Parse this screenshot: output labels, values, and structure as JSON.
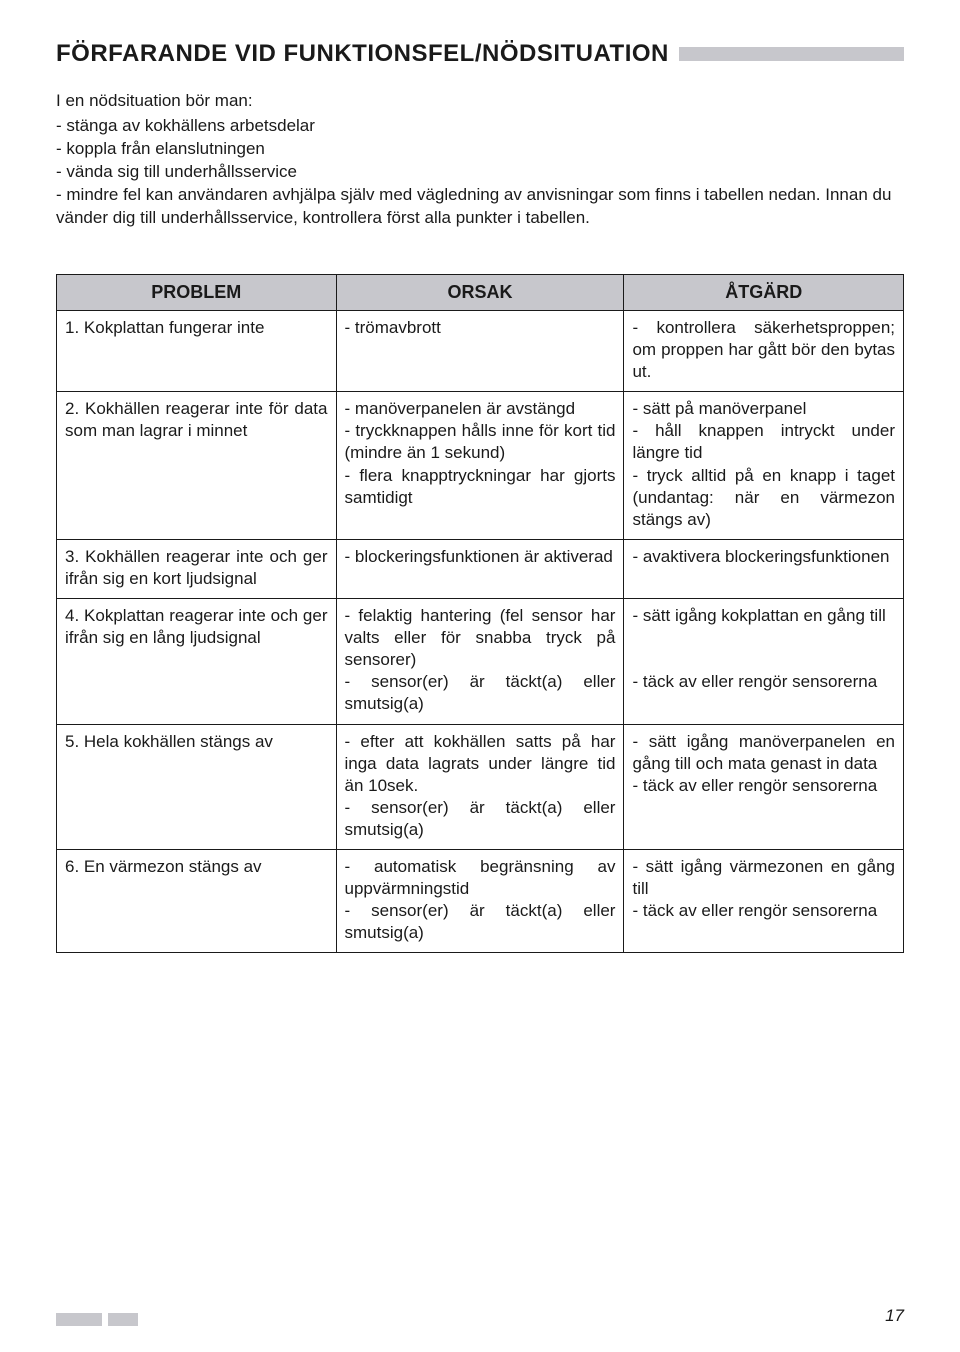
{
  "title": "FÖRFARANDE VID FUNKTIONSFEL/NÖDSITUATION",
  "intro": {
    "lead": "I en nödsituation bör man:",
    "bullets": [
      "- stänga av kokhällens arbetsdelar",
      "- koppla från elanslutningen",
      "- vända sig till underhållsservice",
      "- mindre fel kan användaren avhjälpa själv med vägledning av anvisningar som finns i tabellen nedan. Innan du vänder dig till underhållsservice, kontrollera först alla punkter i tabellen."
    ]
  },
  "table": {
    "headers": {
      "c1": "PROBLEM",
      "c2": "ORSAK",
      "c3": "ÅTGÄRD"
    },
    "rows": [
      {
        "problem": "1. Kokplattan fungerar inte",
        "orsak": "- trömavbrott",
        "atgard": "- kontrollera säkerhetsproppen; om proppen har gått bör den bytas ut."
      },
      {
        "problem": "2. Kokhällen reagerar inte för data som man lagrar i minnet",
        "orsak": "- manöverpanelen är avstängd\n- tryckknappen hålls inne för kort tid (mindre än 1 sekund)\n- flera knapptryckningar har gjorts samtidigt",
        "atgard": "- sätt på manöverpanel\n- håll knappen intryckt under längre tid\n- tryck alltid på en knapp i taget (undantag: när en värmezon stängs av)"
      },
      {
        "problem": "3. Kokhällen reagerar inte och ger ifrån sig en kort ljudsignal",
        "orsak": "- blockeringsfunktionen är aktiverad",
        "atgard": "- avaktivera blockeringsfunktionen"
      },
      {
        "problem": "4. Kokplattan reagerar inte och ger ifrån sig en lång ljudsignal",
        "orsak": "- felaktig hantering (fel sensor har valts eller för snabba tryck på sensorer)\n- sensor(er) är täckt(a) eller smutsig(a)",
        "atgard": "- sätt igång kokplattan en gång till\n\n- täck av eller rengör sensorerna"
      },
      {
        "problem": "5. Hela kokhällen stängs av",
        "orsak": "- efter att kokhällen satts på har inga data lagrats under längre tid än 10sek.\n- sensor(er) är täckt(a) eller smutsig(a)",
        "atgard": "- sätt igång manöverpanelen en gång till och mata genast in data\n- täck av eller rengör sensorerna"
      },
      {
        "problem": "6. En värmezon stängs av",
        "orsak": "- automatisk begränsning av uppvärmningstid\n- sensor(er) är täckt(a) eller smutsig(a)",
        "atgard": "- sätt igång värmezonen en gång till\n- täck av eller rengör sensorerna"
      }
    ]
  },
  "page_number": "17",
  "colors": {
    "stripe": "#c7c7cc",
    "text": "#1a1a1a",
    "border": "#1a1a1a",
    "background": "#ffffff"
  }
}
